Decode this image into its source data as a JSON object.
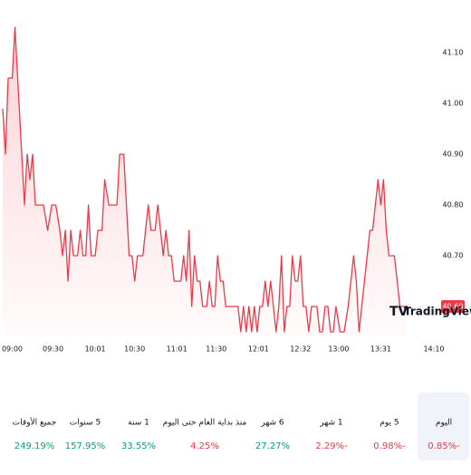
{
  "chart_data": {
    "type": "line",
    "series": [
      {
        "name": null,
        "color": "#f23645",
        "x": [
          533,
          535,
          537,
          540,
          542,
          545,
          547,
          549,
          551,
          553,
          555,
          557,
          560,
          563,
          566,
          569,
          572,
          575,
          577,
          579,
          581,
          583,
          585,
          588,
          590,
          592,
          594,
          596,
          598,
          601,
          603,
          606,
          608,
          611,
          614,
          617,
          619,
          622,
          624,
          626,
          628,
          630,
          632,
          634,
          636,
          638,
          640,
          642,
          645,
          647,
          649,
          651,
          653,
          655,
          657,
          659,
          661,
          664,
          666,
          668,
          670,
          672,
          674,
          676,
          678,
          680,
          683,
          685,
          687,
          689,
          691,
          693,
          695,
          697,
          699,
          701,
          703,
          706,
          708,
          710,
          712,
          714,
          716,
          718,
          720,
          722,
          724,
          726,
          728,
          730,
          732,
          734,
          736,
          738,
          740,
          742,
          744,
          746,
          748,
          750,
          752,
          754,
          756,
          758,
          760,
          762,
          764,
          766,
          768,
          770,
          772,
          774,
          776,
          778,
          781,
          784,
          787,
          789,
          791,
          793,
          795,
          797,
          799,
          801,
          803,
          805,
          807,
          809,
          811,
          813,
          815,
          817,
          819,
          821,
          823,
          825,
          830
        ],
        "values": [
          40.99,
          40.9,
          41.05,
          41.05,
          41.15,
          41.0,
          40.9,
          40.8,
          40.9,
          40.85,
          40.9,
          40.8,
          40.8,
          40.8,
          40.75,
          40.8,
          40.8,
          40.75,
          40.7,
          40.75,
          40.65,
          40.75,
          40.7,
          40.7,
          40.75,
          40.7,
          40.7,
          40.8,
          40.7,
          40.7,
          40.75,
          40.75,
          40.85,
          40.8,
          40.8,
          40.8,
          40.9,
          40.9,
          40.8,
          40.7,
          40.7,
          40.65,
          40.7,
          40.7,
          40.7,
          40.75,
          40.8,
          40.75,
          40.75,
          40.8,
          40.75,
          40.7,
          40.75,
          40.7,
          40.7,
          40.65,
          40.65,
          40.65,
          40.7,
          40.65,
          40.75,
          40.6,
          40.7,
          40.65,
          40.65,
          40.6,
          40.6,
          40.65,
          40.6,
          40.6,
          40.7,
          40.65,
          40.65,
          40.6,
          40.6,
          40.6,
          40.6,
          40.6,
          40.55,
          40.6,
          40.55,
          40.6,
          40.55,
          40.6,
          40.55,
          40.6,
          40.6,
          40.65,
          40.6,
          40.65,
          40.6,
          40.55,
          40.6,
          40.7,
          40.55,
          40.6,
          40.6,
          40.7,
          40.65,
          40.65,
          40.7,
          40.6,
          40.6,
          40.55,
          40.6,
          40.6,
          40.6,
          40.55,
          40.55,
          40.6,
          40.6,
          40.55,
          40.55,
          40.6,
          40.55,
          40.55,
          40.6,
          40.65,
          40.7,
          40.65,
          40.55,
          40.6,
          40.65,
          40.7,
          40.75,
          40.75,
          40.8,
          40.85,
          40.8,
          40.85,
          40.75,
          40.7,
          40.7,
          40.7,
          40.65,
          40.6,
          40.6
        ]
      }
    ],
    "xlim": [
      531,
      854
    ],
    "xticks": [
      {
        "value": 540,
        "label": "09:00"
      },
      {
        "value": 570,
        "label": "09:30"
      },
      {
        "value": 601,
        "label": "10:01"
      },
      {
        "value": 630,
        "label": "10:30"
      },
      {
        "value": 661,
        "label": "11:01"
      },
      {
        "value": 690,
        "label": "11:30"
      },
      {
        "value": 721,
        "label": "12:01"
      },
      {
        "value": 752,
        "label": "12:32"
      },
      {
        "value": 780,
        "label": "13:00"
      },
      {
        "value": 811,
        "label": "13:31"
      },
      {
        "value": 850,
        "label": "14:10"
      }
    ],
    "ylim": [
      40.543,
      41.168
    ],
    "yticks": [
      {
        "value": 40.7,
        "label": "40.70"
      },
      {
        "value": 40.8,
        "label": "40.80"
      },
      {
        "value": 40.9,
        "label": "40.90"
      },
      {
        "value": 41.0,
        "label": "41.00"
      },
      {
        "value": 41.1,
        "label": "41.10"
      }
    ],
    "price_label": "40.60",
    "watermark": "TradingView"
  },
  "performance": [
    {
      "label": "اليوم",
      "value": "-0.85%",
      "color": "#f23645"
    },
    {
      "label": "5 يوم",
      "value": "-0.98%",
      "color": "#f23645"
    },
    {
      "label": "1 شهر",
      "value": "-2.29%",
      "color": "#f23645"
    },
    {
      "label": "6 شهر",
      "value": "27.27%",
      "color": "#089981"
    },
    {
      "label": "منذ بداية العام حتى اليوم",
      "value": "4.25%",
      "color": "#f23645"
    },
    {
      "label": "1 سنة",
      "value": "33.55%",
      "color": "#089981"
    },
    {
      "label": "5 سنوات",
      "value": "157.95%",
      "color": "#089981"
    },
    {
      "label": "جميع الأوقات",
      "value": "249.19%",
      "color": "#089981"
    }
  ]
}
